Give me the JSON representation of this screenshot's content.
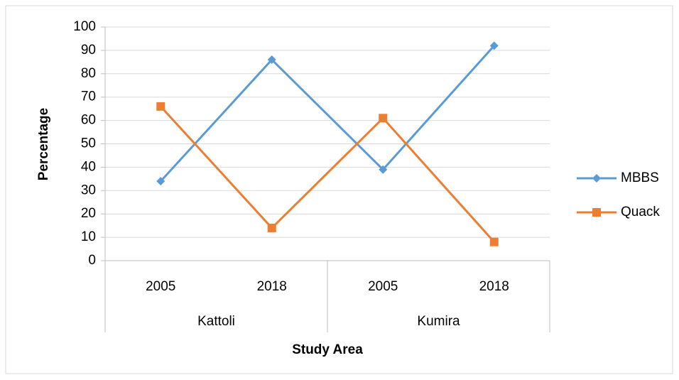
{
  "chart_data": {
    "type": "line",
    "categories": [
      "2005",
      "2018",
      "2005",
      "2018"
    ],
    "category_groups": [
      "Kattoli",
      "Kumira"
    ],
    "series": [
      {
        "name": "MBBS",
        "color": "#5b9bd5",
        "marker": "diamond",
        "values": [
          34,
          86,
          39,
          92
        ]
      },
      {
        "name": "Quack",
        "color": "#ed7d31",
        "marker": "square",
        "values": [
          66,
          14,
          61,
          8
        ]
      }
    ],
    "ylim": [
      0,
      100
    ],
    "yticks": [
      0,
      10,
      20,
      30,
      40,
      50,
      60,
      70,
      80,
      90,
      100
    ],
    "y_label": "Percentage",
    "x_label": "Study Area",
    "grid": true,
    "legend": "right"
  }
}
